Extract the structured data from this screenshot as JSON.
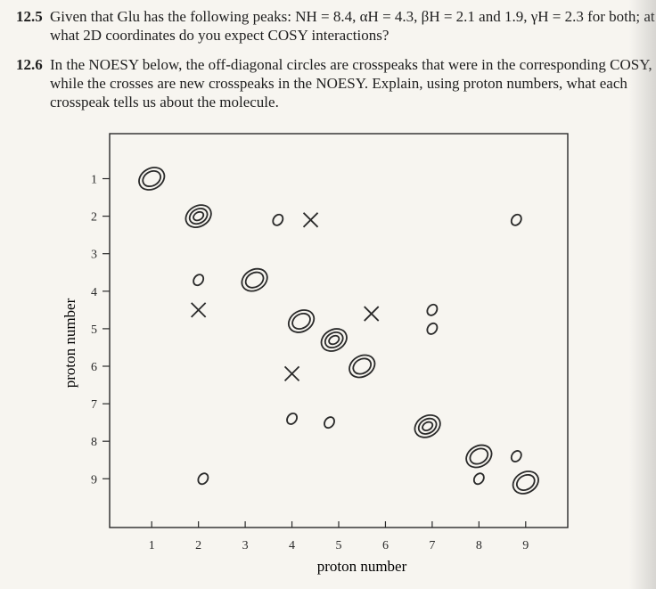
{
  "problems": [
    {
      "number": "12.5",
      "text": "Given that Glu has the following peaks: NH = 8.4, αH = 4.3, βH = 2.1 and 1.9, γH = 2.3 for both; at what 2D coordinates do you expect COSY interactions?"
    },
    {
      "number": "12.6",
      "text": "In the NOESY below, the off-diagonal circles are crosspeaks that were in the corresponding COSY, while the crosses are new crosspeaks in the NOESY. Explain, using proton numbers, what each crosspeak tells us about the molecule."
    }
  ],
  "chart_data": {
    "type": "scatter",
    "xlabel": "proton number",
    "ylabel": "proton number",
    "xticks": [
      "1",
      "2",
      "3",
      "4",
      "5",
      "6",
      "7",
      "8",
      "9"
    ],
    "yticks": [
      "1",
      "2",
      "3",
      "4",
      "5",
      "6",
      "7",
      "8",
      "9"
    ],
    "xlim": [
      0.1,
      9.9
    ],
    "ylim": [
      -0.2,
      10.3
    ],
    "y_inverted": true,
    "diagonal_peaks": [
      {
        "x": 1,
        "y": 1,
        "rings": 2
      },
      {
        "x": 2,
        "y": 2,
        "rings": 3
      },
      {
        "x": 3.2,
        "y": 3.7,
        "rings": 2
      },
      {
        "x": 4.2,
        "y": 4.8,
        "rings": 2
      },
      {
        "x": 4.9,
        "y": 5.3,
        "rings": 3
      },
      {
        "x": 5.5,
        "y": 6.0,
        "rings": 2
      },
      {
        "x": 6.9,
        "y": 7.6,
        "rings": 3
      },
      {
        "x": 8.0,
        "y": 8.4,
        "rings": 2
      },
      {
        "x": 9.0,
        "y": 9.1,
        "rings": 2
      }
    ],
    "cosy_crosspeaks": [
      {
        "x": 3.7,
        "y": 2.1
      },
      {
        "x": 8.8,
        "y": 2.1
      },
      {
        "x": 2.0,
        "y": 3.7
      },
      {
        "x": 7.0,
        "y": 4.5
      },
      {
        "x": 7.0,
        "y": 5.0
      },
      {
        "x": 4.0,
        "y": 7.4
      },
      {
        "x": 4.8,
        "y": 7.5
      },
      {
        "x": 8.8,
        "y": 8.4
      },
      {
        "x": 2.1,
        "y": 9.0
      },
      {
        "x": 8.0,
        "y": 9.0
      }
    ],
    "noesy_crosses": [
      {
        "x": 4.4,
        "y": 2.1
      },
      {
        "x": 2.0,
        "y": 4.5
      },
      {
        "x": 5.7,
        "y": 4.6
      },
      {
        "x": 4.0,
        "y": 6.2
      }
    ]
  }
}
